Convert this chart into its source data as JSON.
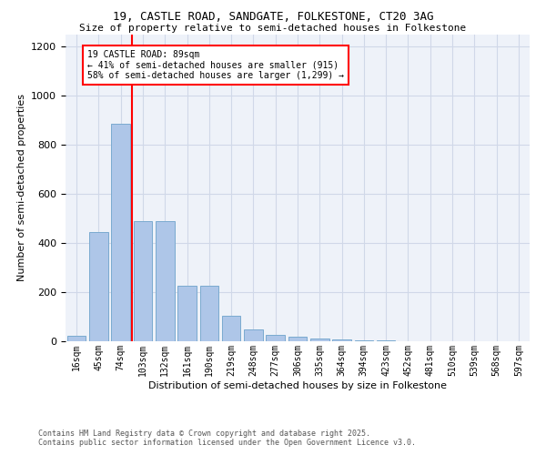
{
  "title1": "19, CASTLE ROAD, SANDGATE, FOLKESTONE, CT20 3AG",
  "title2": "Size of property relative to semi-detached houses in Folkestone",
  "xlabel": "Distribution of semi-detached houses by size in Folkestone",
  "ylabel": "Number of semi-detached properties",
  "categories": [
    "16sqm",
    "45sqm",
    "74sqm",
    "103sqm",
    "132sqm",
    "161sqm",
    "190sqm",
    "219sqm",
    "248sqm",
    "277sqm",
    "306sqm",
    "335sqm",
    "364sqm",
    "394sqm",
    "423sqm",
    "452sqm",
    "481sqm",
    "510sqm",
    "539sqm",
    "568sqm",
    "597sqm"
  ],
  "values": [
    22,
    443,
    886,
    490,
    490,
    225,
    225,
    103,
    50,
    25,
    20,
    12,
    7,
    3,
    2,
    1,
    1,
    0,
    0,
    0,
    0
  ],
  "bar_color": "#aec6e8",
  "bar_edge_color": "#7aaad0",
  "grid_color": "#d0d8e8",
  "bg_color": "#eef2f9",
  "vline_color": "red",
  "vline_pos": 2.5,
  "annotation_text": "19 CASTLE ROAD: 89sqm\n← 41% of semi-detached houses are smaller (915)\n58% of semi-detached houses are larger (1,299) →",
  "annotation_box_color": "white",
  "annotation_box_edge": "red",
  "ylim": [
    0,
    1250
  ],
  "yticks": [
    0,
    200,
    400,
    600,
    800,
    1000,
    1200
  ],
  "footer1": "Contains HM Land Registry data © Crown copyright and database right 2025.",
  "footer2": "Contains public sector information licensed under the Open Government Licence v3.0."
}
